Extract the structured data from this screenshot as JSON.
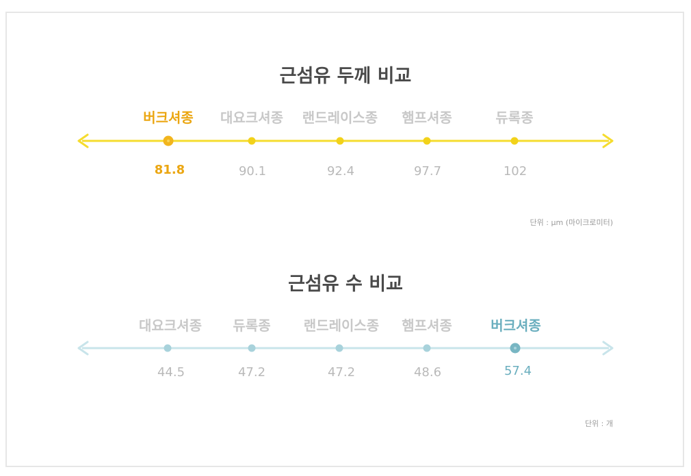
{
  "colors": {
    "yellow_line": "#f5dc2e",
    "yellow_dot": "#f2d21a",
    "yellow_highlight_text": "#eba611",
    "yellow_highlight_dot": "#f2b51d",
    "blue_line": "#c8e4ea",
    "blue_dot": "#a8d2db",
    "blue_highlight_text": "#6aaebe",
    "blue_highlight_dot": "#78b6c3",
    "muted_text": "#c4c4c4",
    "title_text": "#4a4a4a"
  },
  "thickness": {
    "title": "근섬유 두께 비교",
    "unit": "단위 : µm (마이크로미터)",
    "items": [
      {
        "label": "버크셔종",
        "value": "81.8",
        "highlight": true
      },
      {
        "label": "대요크셔종",
        "value": "90.1",
        "highlight": false
      },
      {
        "label": "랜드레이스종",
        "value": "92.4",
        "highlight": false
      },
      {
        "label": "햄프셔종",
        "value": "97.7",
        "highlight": false
      },
      {
        "label": "듀록종",
        "value": "102",
        "highlight": false
      }
    ]
  },
  "count": {
    "title": "근섬유 수 비교",
    "unit": "단위 : 개",
    "items": [
      {
        "label": "대요크셔종",
        "value": "44.5",
        "highlight": false
      },
      {
        "label": "듀록종",
        "value": "47.2",
        "highlight": false
      },
      {
        "label": "랜드레이스종",
        "value": "47.2",
        "highlight": false
      },
      {
        "label": "햄프셔종",
        "value": "48.6",
        "highlight": false
      },
      {
        "label": "버크셔종",
        "value": "57.4",
        "highlight": true
      }
    ]
  }
}
